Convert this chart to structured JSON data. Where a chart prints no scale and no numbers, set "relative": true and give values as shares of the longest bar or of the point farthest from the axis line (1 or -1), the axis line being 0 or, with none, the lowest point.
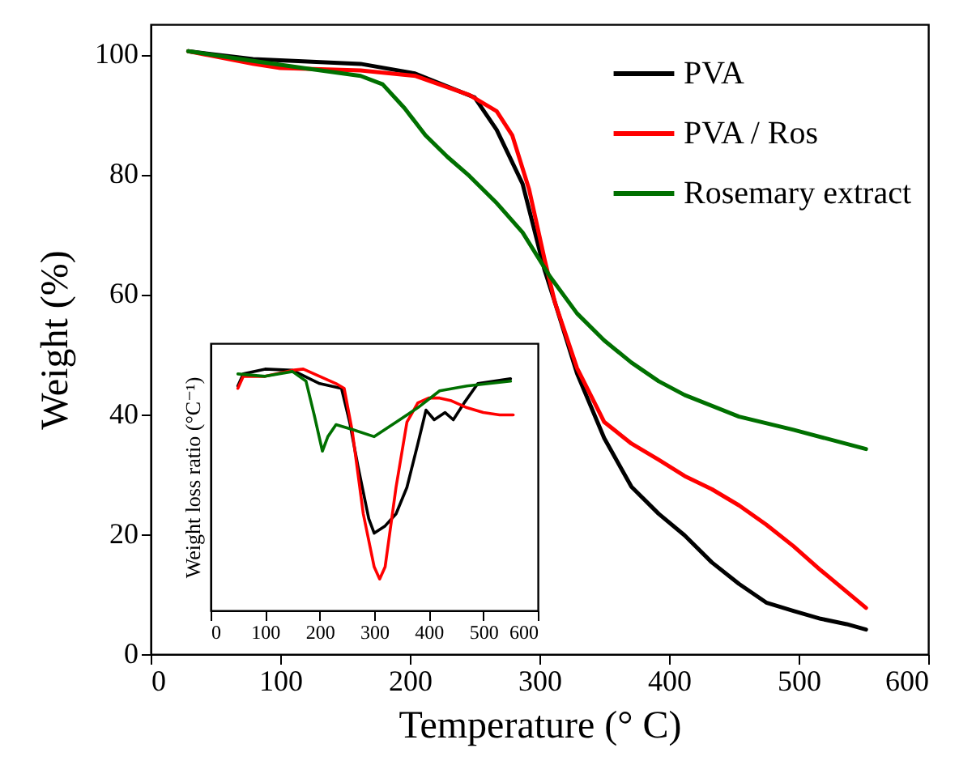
{
  "chart_data": [
    {
      "type": "line",
      "xlabel": "Temperature (° C)",
      "ylabel": "Weight (%)",
      "xlim": [
        0,
        600
      ],
      "xticks": [
        0,
        100,
        200,
        300,
        400,
        500,
        600
      ],
      "ylim": [
        0,
        105
      ],
      "yticks": [
        0,
        20,
        40,
        60,
        80,
        100
      ],
      "legend": "top right",
      "grid": false,
      "x": [
        29,
        79,
        121,
        162,
        204,
        250,
        267,
        287,
        304,
        312,
        329,
        350,
        371,
        392,
        412,
        433,
        454,
        475,
        496,
        517,
        537,
        552
      ],
      "series": [
        {
          "name": "PVA",
          "color": "#000000",
          "values": [
            100.5,
            99.2,
            98.8,
            98.4,
            96.8,
            92.8,
            87.4,
            78.4,
            64,
            58.6,
            46.8,
            36,
            27.9,
            23.4,
            19.8,
            15.3,
            11.7,
            8.6,
            7.2,
            5.9,
            5,
            4.1
          ]
        },
        {
          "name": "PVA / Ros",
          "color": "#ff0000",
          "x": [
            29,
            79,
            100,
            162,
            204,
            246,
            267,
            279,
            292,
            304,
            312,
            329,
            350,
            371,
            392,
            412,
            433,
            454,
            475,
            496,
            517,
            537,
            552
          ],
          "values": [
            100.5,
            98.4,
            97.7,
            97.3,
            96.4,
            93.2,
            90.5,
            86.5,
            77.5,
            65.8,
            58.6,
            47.7,
            38.7,
            35.1,
            32.4,
            29.7,
            27.5,
            24.8,
            21.6,
            18,
            14,
            10.4,
            7.7
          ]
        },
        {
          "name": "Rosemary extract",
          "color": "#007000",
          "x": [
            29,
            79,
            121,
            162,
            179,
            196,
            212,
            229,
            246,
            267,
            287,
            308,
            329,
            350,
            371,
            392,
            412,
            454,
            496,
            552
          ],
          "values": [
            100.5,
            98.9,
            97.6,
            96.4,
            95,
            91,
            86.5,
            82.9,
            79.7,
            75.2,
            70.3,
            63,
            56.8,
            52.3,
            48.6,
            45.5,
            43.2,
            39.6,
            37.4,
            34.2
          ]
        }
      ]
    },
    {
      "type": "line",
      "relative": true,
      "ylabel": "Weight loss ratio (°C⁻¹)",
      "xlim": [
        0,
        600
      ],
      "xticks": [
        0,
        100,
        200,
        300,
        400,
        500,
        600
      ],
      "tick_labels": "x",
      "legend": false,
      "series": [
        {
          "color": "#000000",
          "x": [
            50,
            60,
            100,
            150,
            200,
            240,
            255,
            270,
            290,
            300,
            320,
            340,
            360,
            380,
            395,
            410,
            430,
            445,
            465,
            490,
            520,
            550
          ],
          "values": [
            0.93,
            0.98,
            1.0,
            0.995,
            0.94,
            0.92,
            0.78,
            0.6,
            0.38,
            0.32,
            0.35,
            0.4,
            0.51,
            0.69,
            0.83,
            0.79,
            0.82,
            0.79,
            0.86,
            0.94,
            0.95,
            0.96
          ]
        },
        {
          "color": "#ff0000",
          "x": [
            50,
            60,
            100,
            150,
            170,
            200,
            230,
            245,
            260,
            280,
            300,
            310,
            320,
            340,
            360,
            380,
            400,
            420,
            440,
            470,
            500,
            530,
            555
          ],
          "values": [
            0.92,
            0.97,
            0.97,
            0.995,
            1.0,
            0.97,
            0.94,
            0.92,
            0.74,
            0.4,
            0.18,
            0.13,
            0.18,
            0.51,
            0.78,
            0.86,
            0.88,
            0.88,
            0.87,
            0.84,
            0.82,
            0.81,
            0.81
          ]
        },
        {
          "color": "#007000",
          "x": [
            50,
            100,
            150,
            175,
            190,
            205,
            215,
            230,
            260,
            300,
            340,
            380,
            420,
            470,
            550
          ],
          "values": [
            0.98,
            0.97,
            0.99,
            0.95,
            0.81,
            0.66,
            0.72,
            0.77,
            0.75,
            0.72,
            0.78,
            0.84,
            0.91,
            0.93,
            0.95
          ]
        }
      ]
    }
  ]
}
